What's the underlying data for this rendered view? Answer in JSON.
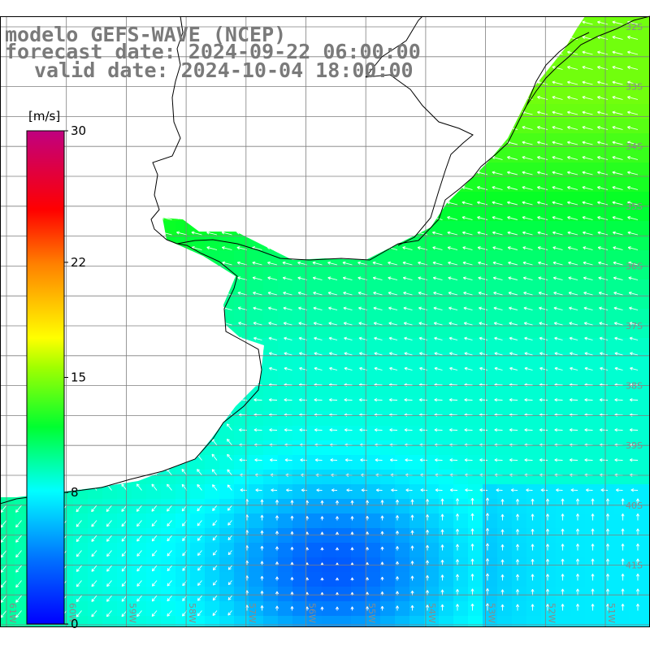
{
  "title": {
    "model": "modelo GEFS-WAVE (NCEP)",
    "forecast": "forecast date: 2024-09-22 06:00:00",
    "valid": "valid date: 2024-10-04 18:00:00"
  },
  "colorbar": {
    "unit": "[m/s]",
    "ticks": [
      "30",
      "22",
      "15",
      "8",
      "0"
    ],
    "tick_values": [
      30,
      22,
      15,
      8,
      0
    ]
  },
  "lat_labels": [
    "32S",
    "33S",
    "34S",
    "35S",
    "36S",
    "37S",
    "38S",
    "39S",
    "40S",
    "41S"
  ],
  "lon_labels": [
    "61W",
    "60W",
    "59W",
    "58W",
    "57W",
    "56W",
    "55W",
    "54W",
    "53W",
    "52W",
    "51W"
  ],
  "colors": {
    "land": "#ffffff",
    "coast": "#000000",
    "grid": "#7f7f7f",
    "arrow": "#ffffff",
    "title": "#7a7a7a"
  }
}
